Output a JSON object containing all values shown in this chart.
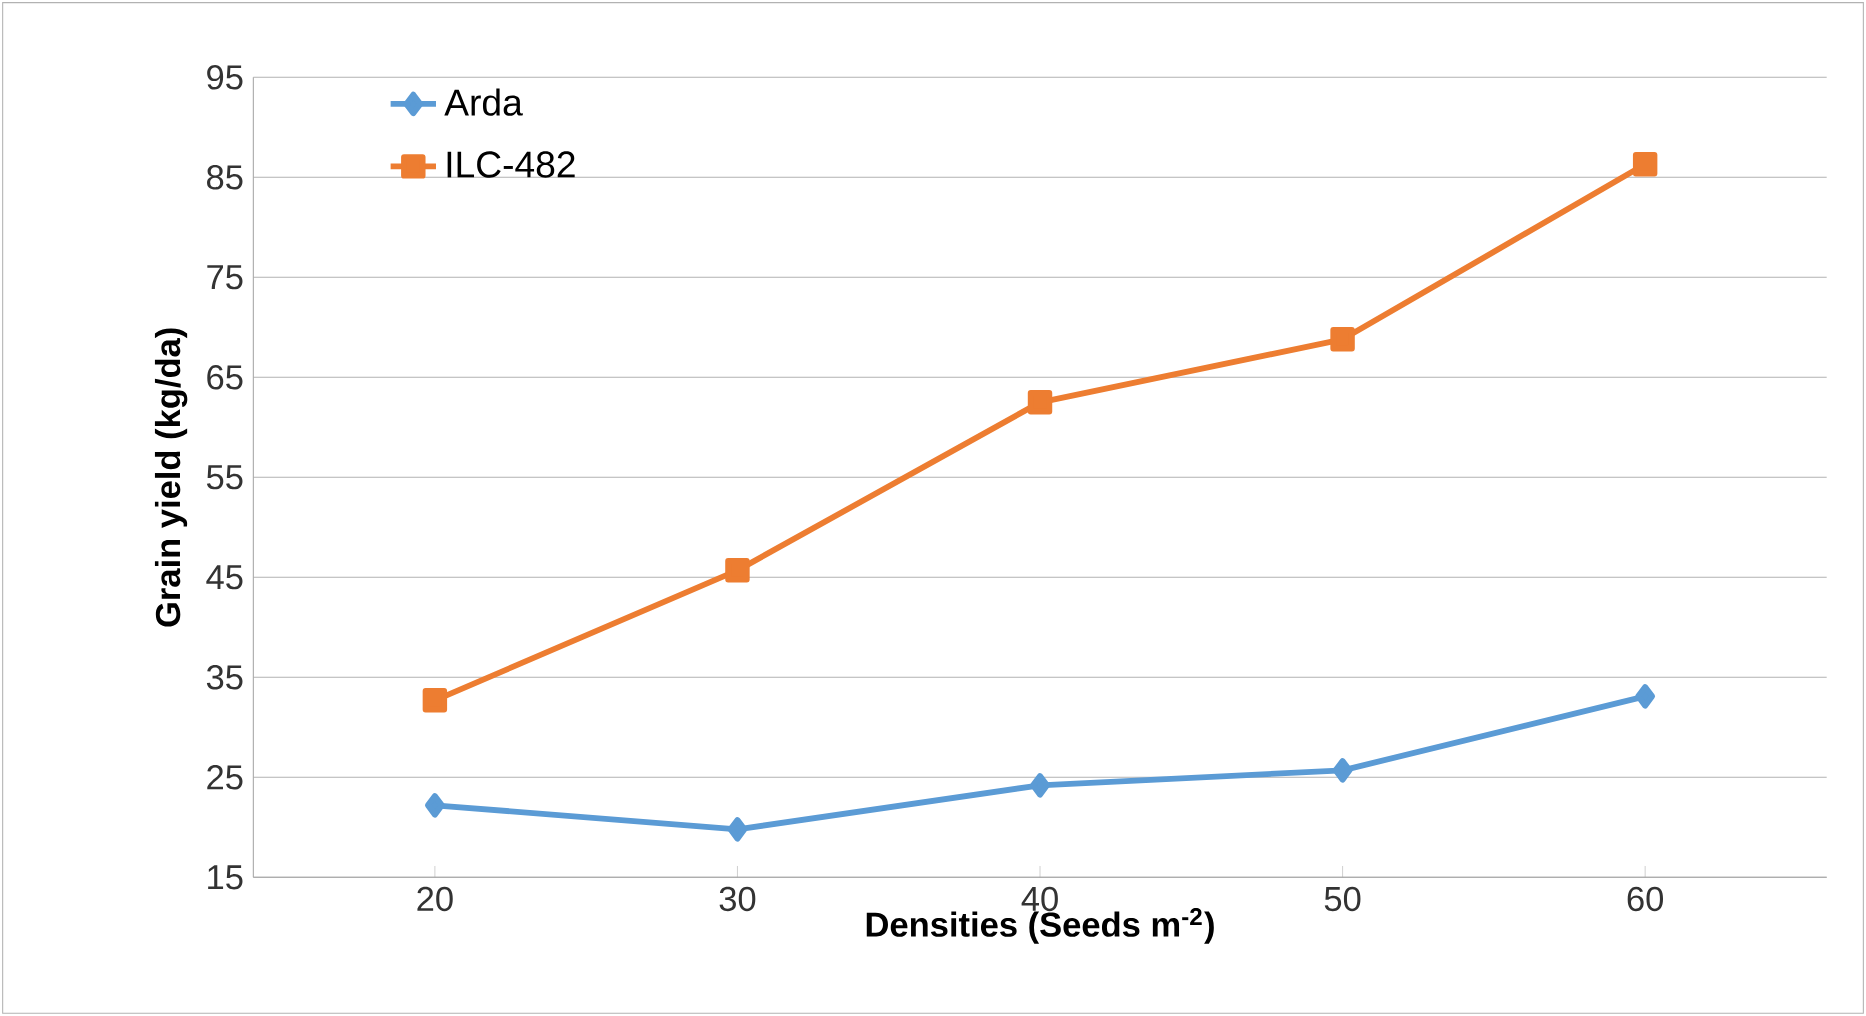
{
  "chart_data": {
    "type": "line",
    "xlabel": "Densities (Seeds m$^{-2}$)",
    "ylabel": "Grain yield (kg/da)",
    "categories": [
      "20",
      "30",
      "40",
      "50",
      "60"
    ],
    "series": [
      {
        "name": "Arda",
        "color": "#5b9bd5",
        "marker": "diamond",
        "values": [
          22.2,
          19.8,
          24.2,
          25.7,
          33.1
        ]
      },
      {
        "name": "ILC-482",
        "color": "#ed7d31",
        "marker": "square",
        "values": [
          32.7,
          45.7,
          62.5,
          68.8,
          86.3
        ]
      }
    ],
    "ylim": [
      15,
      95
    ],
    "yticks": [
      15,
      25,
      35,
      45,
      55,
      65,
      75,
      85,
      95
    ],
    "grid": "y",
    "legend": "top left",
    "line_style": "solid"
  }
}
